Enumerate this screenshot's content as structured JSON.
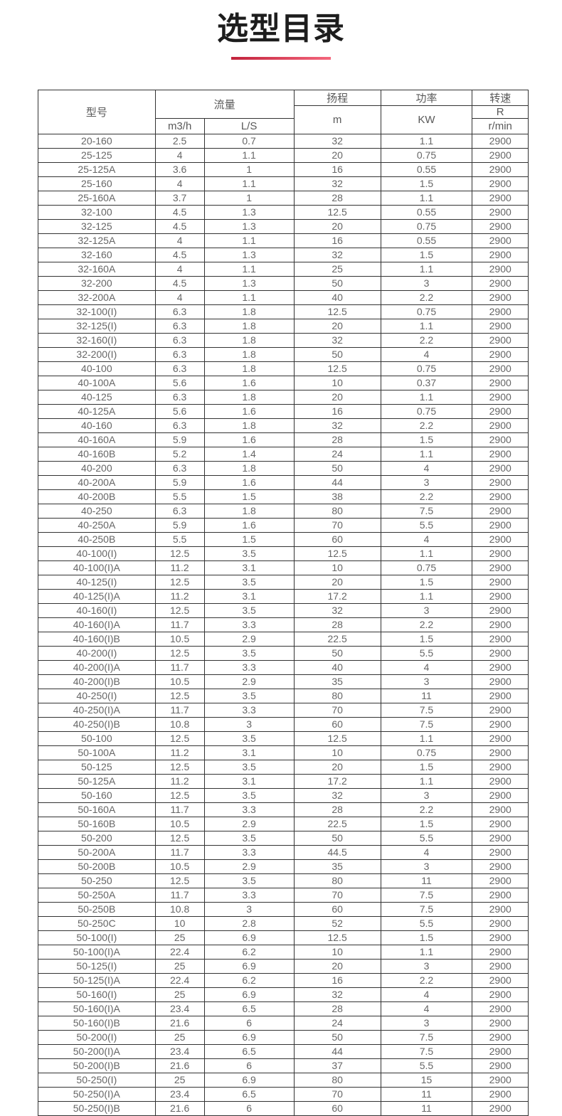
{
  "title": "选型目录",
  "colors": {
    "accent_red_dark": "#c2233c",
    "accent_red_light": "#f4677d",
    "border": "#333333",
    "cell_text": "#666666",
    "title_text": "#1d1d1d"
  },
  "table": {
    "header": {
      "model": "型号",
      "flow": "流量",
      "flow_unit_m3h": "m3/h",
      "flow_unit_ls": "L/S",
      "head": "扬程",
      "head_unit": "m",
      "power": "功率",
      "power_unit": "KW",
      "speed": "转速",
      "speed_unit_r": "R",
      "speed_unit_rmin": "r/min"
    },
    "rows": [
      [
        "20-160",
        "2.5",
        "0.7",
        "32",
        "1.1",
        "2900"
      ],
      [
        "25-125",
        "4",
        "1.1",
        "20",
        "0.75",
        "2900"
      ],
      [
        "25-125A",
        "3.6",
        "1",
        "16",
        "0.55",
        "2900"
      ],
      [
        "25-160",
        "4",
        "1.1",
        "32",
        "1.5",
        "2900"
      ],
      [
        "25-160A",
        "3.7",
        "1",
        "28",
        "1.1",
        "2900"
      ],
      [
        "32-100",
        "4.5",
        "1.3",
        "12.5",
        "0.55",
        "2900"
      ],
      [
        "32-125",
        "4.5",
        "1.3",
        "20",
        "0.75",
        "2900"
      ],
      [
        "32-125A",
        "4",
        "1.1",
        "16",
        "0.55",
        "2900"
      ],
      [
        "32-160",
        "4.5",
        "1.3",
        "32",
        "1.5",
        "2900"
      ],
      [
        "32-160A",
        "4",
        "1.1",
        "25",
        "1.1",
        "2900"
      ],
      [
        "32-200",
        "4.5",
        "1.3",
        "50",
        "3",
        "2900"
      ],
      [
        "32-200A",
        "4",
        "1.1",
        "40",
        "2.2",
        "2900"
      ],
      [
        "32-100(I)",
        "6.3",
        "1.8",
        "12.5",
        "0.75",
        "2900"
      ],
      [
        "32-125(I)",
        "6.3",
        "1.8",
        "20",
        "1.1",
        "2900"
      ],
      [
        "32-160(I)",
        "6.3",
        "1.8",
        "32",
        "2.2",
        "2900"
      ],
      [
        "32-200(I)",
        "6.3",
        "1.8",
        "50",
        "4",
        "2900"
      ],
      [
        "40-100",
        "6.3",
        "1.8",
        "12.5",
        "0.75",
        "2900"
      ],
      [
        "40-100A",
        "5.6",
        "1.6",
        "10",
        "0.37",
        "2900"
      ],
      [
        "40-125",
        "6.3",
        "1.8",
        "20",
        "1.1",
        "2900"
      ],
      [
        "40-125A",
        "5.6",
        "1.6",
        "16",
        "0.75",
        "2900"
      ],
      [
        "40-160",
        "6.3",
        "1.8",
        "32",
        "2.2",
        "2900"
      ],
      [
        "40-160A",
        "5.9",
        "1.6",
        "28",
        "1.5",
        "2900"
      ],
      [
        "40-160B",
        "5.2",
        "1.4",
        "24",
        "1.1",
        "2900"
      ],
      [
        "40-200",
        "6.3",
        "1.8",
        "50",
        "4",
        "2900"
      ],
      [
        "40-200A",
        "5.9",
        "1.6",
        "44",
        "3",
        "2900"
      ],
      [
        "40-200B",
        "5.5",
        "1.5",
        "38",
        "2.2",
        "2900"
      ],
      [
        "40-250",
        "6.3",
        "1.8",
        "80",
        "7.5",
        "2900"
      ],
      [
        "40-250A",
        "5.9",
        "1.6",
        "70",
        "5.5",
        "2900"
      ],
      [
        "40-250B",
        "5.5",
        "1.5",
        "60",
        "4",
        "2900"
      ],
      [
        "40-100(I)",
        "12.5",
        "3.5",
        "12.5",
        "1.1",
        "2900"
      ],
      [
        "40-100(I)A",
        "11.2",
        "3.1",
        "10",
        "0.75",
        "2900"
      ],
      [
        "40-125(I)",
        "12.5",
        "3.5",
        "20",
        "1.5",
        "2900"
      ],
      [
        "40-125(I)A",
        "11.2",
        "3.1",
        "17.2",
        "1.1",
        "2900"
      ],
      [
        "40-160(I)",
        "12.5",
        "3.5",
        "32",
        "3",
        "2900"
      ],
      [
        "40-160(I)A",
        "11.7",
        "3.3",
        "28",
        "2.2",
        "2900"
      ],
      [
        "40-160(I)B",
        "10.5",
        "2.9",
        "22.5",
        "1.5",
        "2900"
      ],
      [
        "40-200(I)",
        "12.5",
        "3.5",
        "50",
        "5.5",
        "2900"
      ],
      [
        "40-200(I)A",
        "11.7",
        "3.3",
        "40",
        "4",
        "2900"
      ],
      [
        "40-200(I)B",
        "10.5",
        "2.9",
        "35",
        "3",
        "2900"
      ],
      [
        "40-250(I)",
        "12.5",
        "3.5",
        "80",
        "11",
        "2900"
      ],
      [
        "40-250(I)A",
        "11.7",
        "3.3",
        "70",
        "7.5",
        "2900"
      ],
      [
        "40-250(I)B",
        "10.8",
        "3",
        "60",
        "7.5",
        "2900"
      ],
      [
        "50-100",
        "12.5",
        "3.5",
        "12.5",
        "1.1",
        "2900"
      ],
      [
        "50-100A",
        "11.2",
        "3.1",
        "10",
        "0.75",
        "2900"
      ],
      [
        "50-125",
        "12.5",
        "3.5",
        "20",
        "1.5",
        "2900"
      ],
      [
        "50-125A",
        "11.2",
        "3.1",
        "17.2",
        "1.1",
        "2900"
      ],
      [
        "50-160",
        "12.5",
        "3.5",
        "32",
        "3",
        "2900"
      ],
      [
        "50-160A",
        "11.7",
        "3.3",
        "28",
        "2.2",
        "2900"
      ],
      [
        "50-160B",
        "10.5",
        "2.9",
        "22.5",
        "1.5",
        "2900"
      ],
      [
        "50-200",
        "12.5",
        "3.5",
        "50",
        "5.5",
        "2900"
      ],
      [
        "50-200A",
        "11.7",
        "3.3",
        "44.5",
        "4",
        "2900"
      ],
      [
        "50-200B",
        "10.5",
        "2.9",
        "35",
        "3",
        "2900"
      ],
      [
        "50-250",
        "12.5",
        "3.5",
        "80",
        "11",
        "2900"
      ],
      [
        "50-250A",
        "11.7",
        "3.3",
        "70",
        "7.5",
        "2900"
      ],
      [
        "50-250B",
        "10.8",
        "3",
        "60",
        "7.5",
        "2900"
      ],
      [
        "50-250C",
        "10",
        "2.8",
        "52",
        "5.5",
        "2900"
      ],
      [
        "50-100(I)",
        "25",
        "6.9",
        "12.5",
        "1.5",
        "2900"
      ],
      [
        "50-100(I)A",
        "22.4",
        "6.2",
        "10",
        "1.1",
        "2900"
      ],
      [
        "50-125(I)",
        "25",
        "6.9",
        "20",
        "3",
        "2900"
      ],
      [
        "50-125(I)A",
        "22.4",
        "6.2",
        "16",
        "2.2",
        "2900"
      ],
      [
        "50-160(I)",
        "25",
        "6.9",
        "32",
        "4",
        "2900"
      ],
      [
        "50-160(I)A",
        "23.4",
        "6.5",
        "28",
        "4",
        "2900"
      ],
      [
        "50-160(I)B",
        "21.6",
        "6",
        "24",
        "3",
        "2900"
      ],
      [
        "50-200(I)",
        "25",
        "6.9",
        "50",
        "7.5",
        "2900"
      ],
      [
        "50-200(I)A",
        "23.4",
        "6.5",
        "44",
        "7.5",
        "2900"
      ],
      [
        "50-200(I)B",
        "21.6",
        "6",
        "37",
        "5.5",
        "2900"
      ],
      [
        "50-250(I)",
        "25",
        "6.9",
        "80",
        "15",
        "2900"
      ],
      [
        "50-250(I)A",
        "23.4",
        "6.5",
        "70",
        "11",
        "2900"
      ],
      [
        "50-250(I)B",
        "21.6",
        "6",
        "60",
        "11",
        "2900"
      ]
    ]
  }
}
